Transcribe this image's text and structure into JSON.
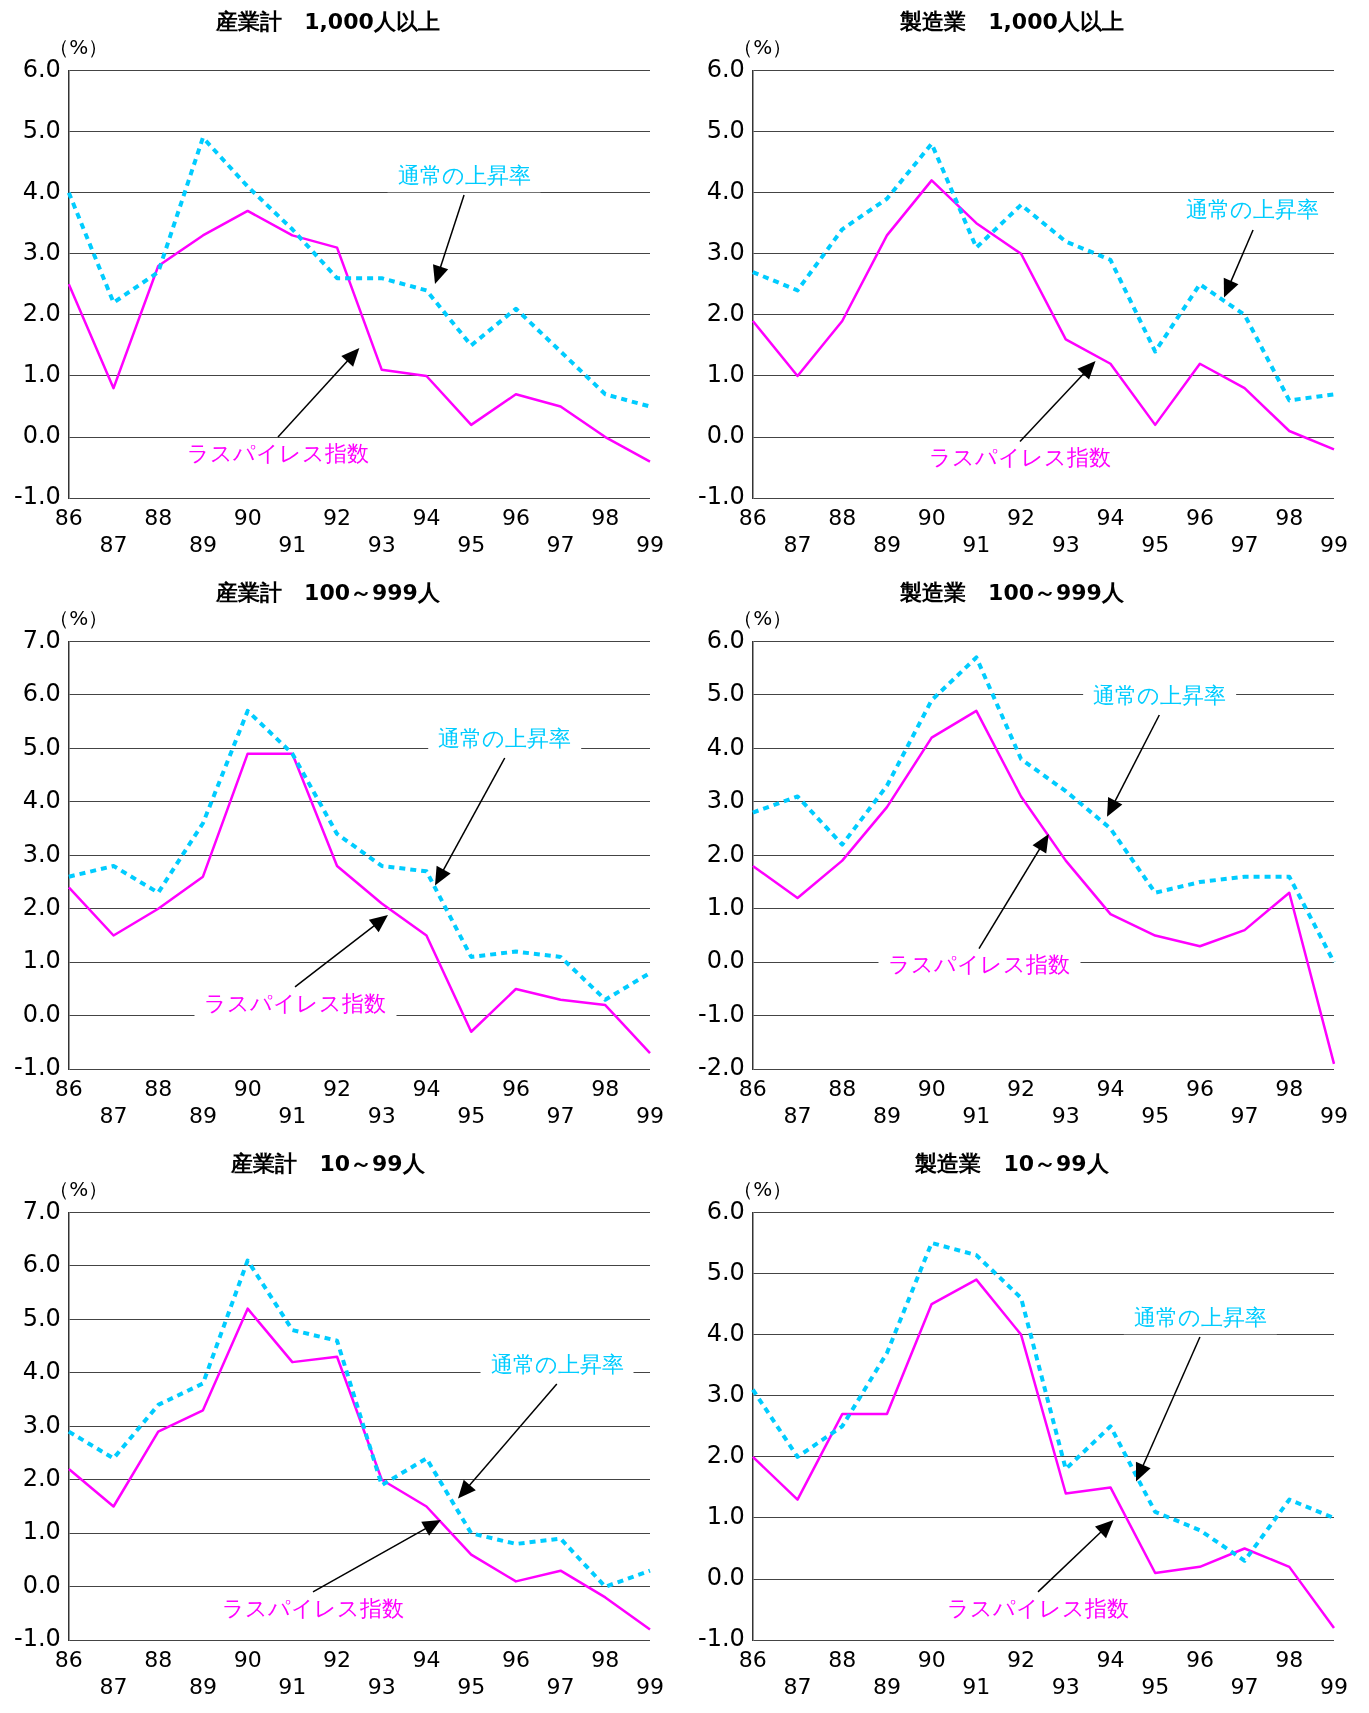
{
  "chart_data": [
    {
      "type": "line",
      "title": "産業計　1,000人以上",
      "ylabel": "（%）",
      "categories": [
        "86",
        "87",
        "88",
        "89",
        "90",
        "91",
        "92",
        "93",
        "94",
        "95",
        "96",
        "97",
        "98",
        "99"
      ],
      "ylim": [
        -1,
        6
      ],
      "yticks": [
        {
          "value": -1,
          "label": "-1.0"
        },
        {
          "value": 0,
          "label": "0.0"
        },
        {
          "value": 1,
          "label": "1.0"
        },
        {
          "value": 2,
          "label": "2.0"
        },
        {
          "value": 3,
          "label": "3.0"
        },
        {
          "value": 4,
          "label": "4.0"
        },
        {
          "value": 5,
          "label": "5.0"
        },
        {
          "value": 6,
          "label": "6.0"
        }
      ],
      "grid": "y",
      "marker": "none",
      "series": [
        {
          "name": "通常の上昇率",
          "color": "#00ccff",
          "line_style": "dashed",
          "values": [
            4.0,
            2.2,
            2.7,
            4.9,
            4.1,
            3.4,
            2.6,
            2.6,
            2.4,
            1.5,
            2.1,
            1.4,
            0.7,
            0.5
          ]
        },
        {
          "name": "ラスパイレス指数",
          "color": "#ff00ff",
          "line_style": "solid",
          "values": [
            2.5,
            0.8,
            2.8,
            3.3,
            3.7,
            3.3,
            3.1,
            1.1,
            1.0,
            0.2,
            0.7,
            0.5,
            0.0,
            -0.4
          ]
        }
      ]
    },
    {
      "type": "line",
      "title": "製造業　1,000人以上",
      "ylabel": "（%）",
      "categories": [
        "86",
        "87",
        "88",
        "89",
        "90",
        "91",
        "92",
        "93",
        "94",
        "95",
        "96",
        "97",
        "98",
        "99"
      ],
      "ylim": [
        -1,
        6
      ],
      "yticks": [
        {
          "value": -1,
          "label": "-1.0"
        },
        {
          "value": 0,
          "label": "0.0"
        },
        {
          "value": 1,
          "label": "1.0"
        },
        {
          "value": 2,
          "label": "2.0"
        },
        {
          "value": 3,
          "label": "3.0"
        },
        {
          "value": 4,
          "label": "4.0"
        },
        {
          "value": 5,
          "label": "5.0"
        },
        {
          "value": 6,
          "label": "6.0"
        }
      ],
      "grid": "y",
      "marker": "none",
      "series": [
        {
          "name": "通常の上昇率",
          "color": "#00ccff",
          "line_style": "dashed",
          "values": [
            2.7,
            2.4,
            3.4,
            3.9,
            4.8,
            3.1,
            3.8,
            3.2,
            2.9,
            1.4,
            2.5,
            2.0,
            0.6,
            0.7
          ]
        },
        {
          "name": "ラスパイレス指数",
          "color": "#ff00ff",
          "line_style": "solid",
          "values": [
            1.9,
            1.0,
            1.9,
            3.3,
            4.2,
            3.5,
            3.0,
            1.6,
            1.2,
            0.2,
            1.2,
            0.8,
            0.1,
            -0.2
          ]
        }
      ]
    },
    {
      "type": "line",
      "title": "産業計　100～999人",
      "ylabel": "（%）",
      "categories": [
        "86",
        "87",
        "88",
        "89",
        "90",
        "91",
        "92",
        "93",
        "94",
        "95",
        "96",
        "97",
        "98",
        "99"
      ],
      "ylim": [
        -1,
        7
      ],
      "yticks": [
        {
          "value": -1,
          "label": "-1.0"
        },
        {
          "value": 0,
          "label": "0.0"
        },
        {
          "value": 1,
          "label": "1.0"
        },
        {
          "value": 2,
          "label": "2.0"
        },
        {
          "value": 3,
          "label": "3.0"
        },
        {
          "value": 4,
          "label": "4.0"
        },
        {
          "value": 5,
          "label": "5.0"
        },
        {
          "value": 6,
          "label": "6.0"
        },
        {
          "value": 7,
          "label": "7.0"
        }
      ],
      "grid": "y",
      "marker": "none",
      "series": [
        {
          "name": "通常の上昇率",
          "color": "#00ccff",
          "line_style": "dashed",
          "values": [
            2.6,
            2.8,
            2.3,
            3.6,
            5.7,
            4.9,
            3.4,
            2.8,
            2.7,
            1.1,
            1.2,
            1.1,
            0.3,
            0.8
          ]
        },
        {
          "name": "ラスパイレス指数",
          "color": "#ff00ff",
          "line_style": "solid",
          "values": [
            2.4,
            1.5,
            2.0,
            2.6,
            4.9,
            4.9,
            2.8,
            2.1,
            1.5,
            -0.3,
            0.5,
            0.3,
            0.2,
            -0.7
          ]
        }
      ]
    },
    {
      "type": "line",
      "title": "製造業　100～999人",
      "ylabel": "（%）",
      "categories": [
        "86",
        "87",
        "88",
        "89",
        "90",
        "91",
        "92",
        "93",
        "94",
        "95",
        "96",
        "97",
        "98",
        "99"
      ],
      "ylim": [
        -2,
        6
      ],
      "yticks": [
        {
          "value": -2,
          "label": "-2.0"
        },
        {
          "value": -1,
          "label": "-1.0"
        },
        {
          "value": 0,
          "label": "0.0"
        },
        {
          "value": 1,
          "label": "1.0"
        },
        {
          "value": 2,
          "label": "2.0"
        },
        {
          "value": 3,
          "label": "3.0"
        },
        {
          "value": 4,
          "label": "4.0"
        },
        {
          "value": 5,
          "label": "5.0"
        },
        {
          "value": 6,
          "label": "6.0"
        }
      ],
      "grid": "y",
      "marker": "none",
      "series": [
        {
          "name": "通常の上昇率",
          "color": "#00ccff",
          "line_style": "dashed",
          "values": [
            2.8,
            3.1,
            2.2,
            3.3,
            4.9,
            5.7,
            3.8,
            3.2,
            2.5,
            1.3,
            1.5,
            1.6,
            1.6,
            0.0
          ]
        },
        {
          "name": "ラスパイレス指数",
          "color": "#ff00ff",
          "line_style": "solid",
          "values": [
            1.8,
            1.2,
            1.9,
            2.9,
            4.2,
            4.7,
            3.1,
            1.9,
            0.9,
            0.5,
            0.3,
            0.6,
            1.3,
            -1.9
          ]
        }
      ]
    },
    {
      "type": "line",
      "title": "産業計　10～99人",
      "ylabel": "（%）",
      "categories": [
        "86",
        "87",
        "88",
        "89",
        "90",
        "91",
        "92",
        "93",
        "94",
        "95",
        "96",
        "97",
        "98",
        "99"
      ],
      "ylim": [
        -1,
        7
      ],
      "yticks": [
        {
          "value": -1,
          "label": "-1.0"
        },
        {
          "value": 0,
          "label": "0.0"
        },
        {
          "value": 1,
          "label": "1.0"
        },
        {
          "value": 2,
          "label": "2.0"
        },
        {
          "value": 3,
          "label": "3.0"
        },
        {
          "value": 4,
          "label": "4.0"
        },
        {
          "value": 5,
          "label": "5.0"
        },
        {
          "value": 6,
          "label": "6.0"
        },
        {
          "value": 7,
          "label": "7.0"
        }
      ],
      "grid": "y",
      "marker": "none",
      "series": [
        {
          "name": "通常の上昇率",
          "color": "#00ccff",
          "line_style": "dashed",
          "values": [
            2.9,
            2.4,
            3.4,
            3.8,
            6.1,
            4.8,
            4.6,
            1.9,
            2.4,
            1.0,
            0.8,
            0.9,
            0.0,
            0.3
          ]
        },
        {
          "name": "ラスパイレス指数",
          "color": "#ff00ff",
          "line_style": "solid",
          "values": [
            2.2,
            1.5,
            2.9,
            3.3,
            5.2,
            4.2,
            4.3,
            2.0,
            1.5,
            0.6,
            0.1,
            0.3,
            -0.2,
            -0.8
          ]
        }
      ]
    },
    {
      "type": "line",
      "title": "製造業　10～99人",
      "ylabel": "（%）",
      "categories": [
        "86",
        "87",
        "88",
        "89",
        "90",
        "91",
        "92",
        "93",
        "94",
        "95",
        "96",
        "97",
        "98",
        "99"
      ],
      "ylim": [
        -1,
        6
      ],
      "yticks": [
        {
          "value": -1,
          "label": "-1.0"
        },
        {
          "value": 0,
          "label": "0.0"
        },
        {
          "value": 1,
          "label": "1.0"
        },
        {
          "value": 2,
          "label": "2.0"
        },
        {
          "value": 3,
          "label": "3.0"
        },
        {
          "value": 4,
          "label": "4.0"
        },
        {
          "value": 5,
          "label": "5.0"
        },
        {
          "value": 6,
          "label": "6.0"
        }
      ],
      "grid": "y",
      "marker": "none",
      "series": [
        {
          "name": "通常の上昇率",
          "color": "#00ccff",
          "line_style": "dashed",
          "values": [
            3.1,
            2.0,
            2.5,
            3.7,
            5.5,
            5.3,
            4.6,
            1.8,
            2.5,
            1.1,
            0.8,
            0.3,
            1.3,
            1.0
          ]
        },
        {
          "name": "ラスパイレス指数",
          "color": "#ff00ff",
          "line_style": "solid",
          "values": [
            2.0,
            1.3,
            2.7,
            2.7,
            4.5,
            4.9,
            4.0,
            1.4,
            1.5,
            0.1,
            0.2,
            0.5,
            0.2,
            -0.8
          ]
        }
      ]
    }
  ]
}
